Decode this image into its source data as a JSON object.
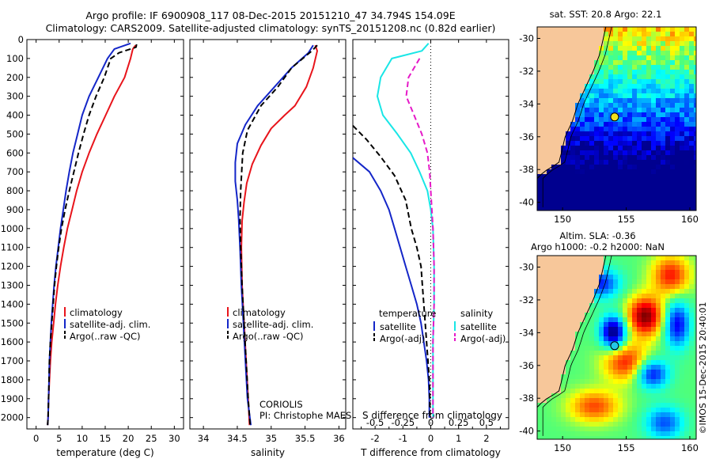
{
  "figure": {
    "title_line1": "Argo profile: IF 6900908_117 08-Dec-2015 20151210_47 34.794S 154.09E",
    "title_line2": "Climatology: CARS2009. Satellite-adjusted climatology: synTS_20151208.nc (0.82d earlier)",
    "footer": "©IMOS 15-Dec-2015 20:40:01"
  },
  "colors": {
    "climatology": "#e8141b",
    "satellite": "#1426c8",
    "argo": "#000000",
    "satellite_salinity": "#19e6e6",
    "argo_salinity": "#e619c8",
    "land": "#f7c79a"
  },
  "chart_data": [
    {
      "type": "line",
      "panel": "temperature",
      "xlabel": "temperature (deg C)",
      "ylabel": "",
      "xlim": [
        -2,
        32
      ],
      "ylim": [
        2060,
        0
      ],
      "xticks": [
        "0",
        "5",
        "10",
        "15",
        "20",
        "25",
        "30"
      ],
      "yticks": [
        "0",
        "100",
        "200",
        "300",
        "400",
        "500",
        "600",
        "700",
        "800",
        "900",
        "1000",
        "1100",
        "1200",
        "1300",
        "1400",
        "1500",
        "1600",
        "1700",
        "1800",
        "1900",
        "2000"
      ],
      "legend": [
        "climatology",
        "satellite-adj. clim.",
        "Argo(..raw -QC)"
      ],
      "series": [
        {
          "name": "climatology",
          "style": "solid",
          "points": [
            [
              21.6,
              30
            ],
            [
              21,
              50
            ],
            [
              20.5,
              100
            ],
            [
              19.2,
              200
            ],
            [
              17,
              300
            ],
            [
              15.1,
              400
            ],
            [
              13.2,
              500
            ],
            [
              11.5,
              600
            ],
            [
              10,
              700
            ],
            [
              8.8,
              800
            ],
            [
              7.8,
              900
            ],
            [
              6.8,
              1000
            ],
            [
              6,
              1100
            ],
            [
              5.3,
              1200
            ],
            [
              4.7,
              1300
            ],
            [
              4.2,
              1400
            ],
            [
              3.8,
              1500
            ],
            [
              3.4,
              1600
            ],
            [
              3.1,
              1700
            ],
            [
              2.9,
              1800
            ],
            [
              2.7,
              1900
            ],
            [
              2.6,
              2000
            ],
            [
              2.5,
              2040
            ]
          ]
        },
        {
          "name": "satellite-adj. clim.",
          "style": "solid",
          "points": [
            [
              20.5,
              20
            ],
            [
              17,
              50
            ],
            [
              15.5,
              100
            ],
            [
              13.5,
              200
            ],
            [
              11.5,
              300
            ],
            [
              10,
              400
            ],
            [
              9,
              500
            ],
            [
              8,
              600
            ],
            [
              7.2,
              700
            ],
            [
              6.5,
              800
            ],
            [
              5.9,
              900
            ],
            [
              5.3,
              1000
            ],
            [
              4.8,
              1100
            ],
            [
              4.3,
              1200
            ],
            [
              3.9,
              1300
            ],
            [
              3.6,
              1400
            ],
            [
              3.3,
              1500
            ],
            [
              3.1,
              1600
            ],
            [
              2.9,
              1700
            ],
            [
              2.8,
              1800
            ],
            [
              2.7,
              1900
            ],
            [
              2.6,
              2000
            ],
            [
              2.5,
              2040
            ]
          ]
        },
        {
          "name": "Argo(..raw -QC)",
          "style": "dashed",
          "points": [
            [
              21.8,
              25
            ],
            [
              21.7,
              40
            ],
            [
              18,
              70
            ],
            [
              16.2,
              100
            ],
            [
              14.8,
              200
            ],
            [
              13,
              300
            ],
            [
              11.5,
              400
            ],
            [
              10.3,
              500
            ],
            [
              9.2,
              600
            ],
            [
              8.2,
              700
            ],
            [
              7.2,
              800
            ],
            [
              6.3,
              900
            ],
            [
              5.5,
              1000
            ],
            [
              4.9,
              1100
            ],
            [
              4.4,
              1200
            ],
            [
              4,
              1300
            ],
            [
              3.7,
              1400
            ],
            [
              3.4,
              1500
            ],
            [
              3.1,
              1600
            ],
            [
              2.9,
              1700
            ],
            [
              2.8,
              1800
            ],
            [
              2.7,
              1900
            ],
            [
              2.6,
              2000
            ],
            [
              2.5,
              2040
            ]
          ]
        }
      ]
    },
    {
      "type": "line",
      "panel": "salinity",
      "xlabel": "salinity",
      "ylabel": "",
      "xlim": [
        33.8,
        36.1
      ],
      "ylim": [
        2060,
        0
      ],
      "xticks": [
        "34",
        "34.5",
        "35",
        "35.5",
        "36"
      ],
      "legend": [
        "climatology",
        "satellite-adj. clim.",
        "Argo(..raw -QC)"
      ],
      "annotation": [
        "CORIOLIS",
        "PI: Christophe MAES"
      ],
      "series": [
        {
          "name": "climatology",
          "style": "solid",
          "points": [
            [
              35.65,
              30
            ],
            [
              35.68,
              60
            ],
            [
              35.62,
              150
            ],
            [
              35.52,
              250
            ],
            [
              35.35,
              350
            ],
            [
              35.2,
              400
            ],
            [
              35,
              470
            ],
            [
              34.85,
              560
            ],
            [
              34.72,
              660
            ],
            [
              34.64,
              760
            ],
            [
              34.6,
              860
            ],
            [
              34.57,
              960
            ],
            [
              34.56,
              1100
            ],
            [
              34.57,
              1300
            ],
            [
              34.6,
              1500
            ],
            [
              34.63,
              1700
            ],
            [
              34.66,
              1900
            ],
            [
              34.68,
              2040
            ]
          ]
        },
        {
          "name": "satellite-adj. clim.",
          "style": "solid",
          "points": [
            [
              35.62,
              30
            ],
            [
              35.55,
              70
            ],
            [
              35.3,
              150
            ],
            [
              35.05,
              250
            ],
            [
              34.8,
              350
            ],
            [
              34.62,
              450
            ],
            [
              34.5,
              550
            ],
            [
              34.47,
              650
            ],
            [
              34.47,
              750
            ],
            [
              34.5,
              850
            ],
            [
              34.52,
              950
            ],
            [
              34.54,
              1100
            ],
            [
              34.56,
              1300
            ],
            [
              34.59,
              1500
            ],
            [
              34.62,
              1700
            ],
            [
              34.65,
              1900
            ],
            [
              34.7,
              2040
            ]
          ]
        },
        {
          "name": "Argo(..raw -QC)",
          "style": "dashed",
          "points": [
            [
              35.68,
              30
            ],
            [
              35.6,
              60
            ],
            [
              35.3,
              150
            ],
            [
              35.1,
              250
            ],
            [
              34.85,
              350
            ],
            [
              34.65,
              480
            ],
            [
              34.58,
              600
            ],
            [
              34.55,
              800
            ],
            [
              34.54,
              950
            ],
            [
              34.55,
              1100
            ],
            [
              34.57,
              1300
            ],
            [
              34.6,
              1500
            ],
            [
              34.63,
              1700
            ],
            [
              34.66,
              1900
            ],
            [
              34.69,
              2040
            ]
          ]
        }
      ]
    },
    {
      "type": "line",
      "panel": "difference",
      "xlabel": "T difference from climatology",
      "xlabel_top": "S difference from climatology",
      "ylabel": "",
      "xlim": [
        -2.8,
        2.8
      ],
      "ylim": [
        2060,
        0
      ],
      "xticks": [
        "-2",
        "-1",
        "0",
        "1",
        "2"
      ],
      "xticks_salinity": [
        "-0.5",
        "-0.25",
        "0",
        "0.25",
        "0.5"
      ],
      "legend_groups": [
        {
          "title": "temperature",
          "items": [
            "satellite",
            "Argo(-adj)"
          ]
        },
        {
          "title": "salinity",
          "items": [
            "satellite",
            "Argo(-adj)"
          ]
        }
      ],
      "series": [
        {
          "name": "satellite",
          "group": "temperature",
          "style": "solid",
          "points": [
            [
              -2.8,
              625
            ],
            [
              -2.2,
              700
            ],
            [
              -1.8,
              800
            ],
            [
              -1.5,
              900
            ],
            [
              -1.3,
              1000
            ],
            [
              -1.1,
              1100
            ],
            [
              -0.9,
              1200
            ],
            [
              -0.7,
              1300
            ],
            [
              -0.5,
              1400
            ],
            [
              -0.35,
              1500
            ],
            [
              -0.25,
              1600
            ],
            [
              -0.15,
              1700
            ],
            [
              -0.08,
              1800
            ],
            [
              -0.05,
              1900
            ],
            [
              -0.05,
              2000
            ]
          ]
        },
        {
          "name": "Argo(-adj)",
          "group": "temperature",
          "style": "dashed",
          "points": [
            [
              -2.8,
              455
            ],
            [
              -2.3,
              530
            ],
            [
              -1.8,
              620
            ],
            [
              -1.3,
              720
            ],
            [
              -0.9,
              850
            ],
            [
              -0.7,
              1000
            ],
            [
              -0.5,
              1100
            ],
            [
              -0.35,
              1200
            ],
            [
              -0.3,
              1300
            ],
            [
              -0.25,
              1400
            ],
            [
              -0.2,
              1500
            ],
            [
              -0.15,
              1600
            ],
            [
              -0.1,
              1700
            ],
            [
              -0.05,
              1800
            ],
            [
              -0.03,
              1900
            ],
            [
              -0.03,
              2000
            ]
          ]
        },
        {
          "name": "satellite",
          "group": "salinity",
          "style": "solid",
          "points": [
            [
              -0.02,
              20
            ],
            [
              -0.08,
              60
            ],
            [
              -0.35,
              100
            ],
            [
              -0.45,
              200
            ],
            [
              -0.48,
              300
            ],
            [
              -0.43,
              400
            ],
            [
              -0.3,
              500
            ],
            [
              -0.18,
              600
            ],
            [
              -0.1,
              700
            ],
            [
              -0.03,
              800
            ],
            [
              0,
              900
            ],
            [
              0.02,
              1000
            ],
            [
              0.03,
              1200
            ],
            [
              0.03,
              1400
            ],
            [
              0.02,
              1600
            ],
            [
              0.02,
              1800
            ],
            [
              0.02,
              2000
            ]
          ]
        },
        {
          "name": "Argo(-adj)",
          "group": "salinity",
          "style": "dashed",
          "points": [
            [
              -0.1,
              100
            ],
            [
              -0.2,
              200
            ],
            [
              -0.22,
              300
            ],
            [
              -0.15,
              400
            ],
            [
              -0.08,
              500
            ],
            [
              -0.03,
              600
            ],
            [
              -0.01,
              700
            ],
            [
              0,
              800
            ],
            [
              0.01,
              900
            ],
            [
              0.02,
              1000
            ],
            [
              0.03,
              1200
            ],
            [
              0.03,
              1400
            ],
            [
              0.02,
              1600
            ],
            [
              0.02,
              1800
            ],
            [
              0.02,
              2000
            ]
          ]
        }
      ]
    }
  ],
  "maps": [
    {
      "title": "sat. SST: 20.8 Argo: 22.1",
      "xticks": [
        "150",
        "155",
        "160"
      ],
      "yticks": [
        "-30",
        "-32",
        "-34",
        "-36",
        "-38",
        "-40"
      ],
      "lon_range": [
        148,
        160.5
      ],
      "lat_range": [
        -40.5,
        -29.3
      ],
      "float_position": [
        154.09,
        -34.794
      ]
    },
    {
      "title_line1": "Altim. SLA: -0.36",
      "title_line2": "Argo h1000: -0.2 h2000: NaN",
      "xticks": [
        "150",
        "155",
        "160"
      ],
      "yticks": [
        "-30",
        "-32",
        "-34",
        "-36",
        "-38",
        "-40"
      ],
      "lon_range": [
        148,
        160.5
      ],
      "lat_range": [
        -40.5,
        -29.3
      ],
      "float_position": [
        154.09,
        -34.794
      ]
    }
  ]
}
